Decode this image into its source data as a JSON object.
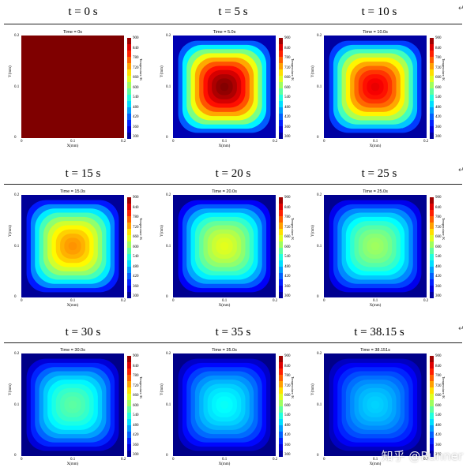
{
  "row_titles": [
    "t · = · 0 · s",
    "t · = · 5 · s",
    "t · = · 10 · s",
    "t · = · 15 · s",
    "t · = · 20 · s",
    "t · = · 25 · s",
    "t · = · 30 · s",
    "t · = · 35 · s",
    "t · = · 38.15 · s"
  ],
  "headers": {
    "p0": "t = 0 s",
    "p1": "t = 5 s",
    "p2": "t = 10 s",
    "p3": "t = 15 s",
    "p4": "t = 20 s",
    "p5": "t = 25 s",
    "p6": "t = 30 s",
    "p7": "t = 35 s",
    "p8": "t = 38.15 s"
  },
  "return_mark": "↵",
  "watermark": "知乎 @Runner",
  "colormap": [
    "#00007f",
    "#0000ff",
    "#007fff",
    "#00ffff",
    "#7fff7f",
    "#ffff00",
    "#ff7f00",
    "#ff0000",
    "#7f0000"
  ],
  "chart_data": [
    {
      "type": "heatmap",
      "title": "Time = 0s",
      "time_s": 0,
      "xlabel": "X(mm)",
      "ylabel": "Y(mm)",
      "colorbar_label": "Temperature /K",
      "x_ticks": [
        "0",
        "0.1",
        "0.2"
      ],
      "y_ticks": [
        "0",
        "0.1",
        "0.2"
      ],
      "colorbar_ticks": [
        "900",
        "840",
        "780",
        "720",
        "660",
        "600",
        "540",
        "480",
        "420",
        "360",
        "300"
      ],
      "clim": [
        300,
        900
      ],
      "center_temperature": 900,
      "edge_temperature": 900
    },
    {
      "type": "heatmap",
      "title": "Time = 5.0s",
      "time_s": 5.0,
      "xlabel": "X(mm)",
      "ylabel": "Y(mm)",
      "colorbar_label": "Temperature /K",
      "x_ticks": [
        "0",
        "0.1",
        "0.2"
      ],
      "y_ticks": [
        "0",
        "0.1",
        "0.2"
      ],
      "colorbar_ticks": [
        "900",
        "840",
        "780",
        "720",
        "660",
        "600",
        "540",
        "480",
        "420",
        "360",
        "300"
      ],
      "clim": [
        300,
        900
      ],
      "center_temperature": 900,
      "edge_temperature": 330
    },
    {
      "type": "heatmap",
      "title": "Time = 10.0s",
      "time_s": 10.0,
      "xlabel": "X(mm)",
      "ylabel": "Y(mm)",
      "colorbar_label": "Temperature /K",
      "x_ticks": [
        "0",
        "0.1",
        "0.2"
      ],
      "y_ticks": [
        "0",
        "0.1",
        "0.2"
      ],
      "colorbar_ticks": [
        "900",
        "840",
        "780",
        "720",
        "660",
        "600",
        "540",
        "480",
        "420",
        "360",
        "300"
      ],
      "clim": [
        300,
        900
      ],
      "center_temperature": 840,
      "edge_temperature": 320
    },
    {
      "type": "heatmap",
      "title": "Time = 15.0s",
      "time_s": 15.0,
      "xlabel": "X(mm)",
      "ylabel": "Y(mm)",
      "colorbar_label": "Temperature /K",
      "x_ticks": [
        "0",
        "0.1",
        "0.2"
      ],
      "y_ticks": [
        "0",
        "0.1",
        "0.2"
      ],
      "colorbar_ticks": [
        "900",
        "840",
        "780",
        "720",
        "660",
        "600",
        "540",
        "480",
        "420",
        "360",
        "300"
      ],
      "clim": [
        300,
        900
      ],
      "center_temperature": 740,
      "edge_temperature": 315
    },
    {
      "type": "heatmap",
      "title": "Time = 20.0s",
      "time_s": 20.0,
      "xlabel": "X(mm)",
      "ylabel": "Y(mm)",
      "colorbar_label": "Temperature /K",
      "x_ticks": [
        "0",
        "0.1",
        "0.2"
      ],
      "y_ticks": [
        "0",
        "0.1",
        "0.2"
      ],
      "colorbar_ticks": [
        "900",
        "840",
        "780",
        "720",
        "660",
        "600",
        "540",
        "480",
        "420",
        "360",
        "300"
      ],
      "clim": [
        300,
        900
      ],
      "center_temperature": 660,
      "edge_temperature": 310
    },
    {
      "type": "heatmap",
      "title": "Time = 25.0s",
      "time_s": 25.0,
      "xlabel": "X(mm)",
      "ylabel": "Y(mm)",
      "colorbar_label": "Temperature /K",
      "x_ticks": [
        "0",
        "0.1",
        "0.2"
      ],
      "y_ticks": [
        "0",
        "0.1",
        "0.2"
      ],
      "colorbar_ticks": [
        "900",
        "840",
        "780",
        "720",
        "660",
        "600",
        "540",
        "480",
        "420",
        "360",
        "300"
      ],
      "clim": [
        300,
        900
      ],
      "center_temperature": 620,
      "edge_temperature": 310
    },
    {
      "type": "heatmap",
      "title": "Time = 30.0s",
      "time_s": 30.0,
      "xlabel": "X(mm)",
      "ylabel": "Y(mm)",
      "colorbar_label": "Temperature /K",
      "x_ticks": [
        "0",
        "0.1",
        "0.2"
      ],
      "y_ticks": [
        "0",
        "0.1",
        "0.2"
      ],
      "colorbar_ticks": [
        "900",
        "840",
        "780",
        "720",
        "660",
        "600",
        "540",
        "480",
        "420",
        "360",
        "300"
      ],
      "clim": [
        300,
        900
      ],
      "center_temperature": 580,
      "edge_temperature": 305
    },
    {
      "type": "heatmap",
      "title": "Time = 35.0s",
      "time_s": 35.0,
      "xlabel": "X(mm)",
      "ylabel": "Y(mm)",
      "colorbar_label": "Temperature /K",
      "x_ticks": [
        "0",
        "0.1",
        "0.2"
      ],
      "y_ticks": [
        "0",
        "0.1",
        "0.2"
      ],
      "colorbar_ticks": [
        "900",
        "840",
        "780",
        "720",
        "660",
        "600",
        "540",
        "480",
        "420",
        "360",
        "300"
      ],
      "clim": [
        300,
        900
      ],
      "center_temperature": 530,
      "edge_temperature": 305
    },
    {
      "type": "heatmap",
      "title": "Time = 38.151s",
      "time_s": 38.151,
      "xlabel": "X(mm)",
      "ylabel": "Y(mm)",
      "colorbar_label": "Temperature /K",
      "x_ticks": [
        "0",
        "0.1",
        "0.2"
      ],
      "y_ticks": [
        "0",
        "0.1",
        "0.2"
      ],
      "colorbar_ticks": [
        "900",
        "840",
        "780",
        "720",
        "660",
        "600",
        "540",
        "480",
        "420",
        "360",
        "300"
      ],
      "clim": [
        300,
        900
      ],
      "center_temperature": 500,
      "edge_temperature": 305
    }
  ]
}
